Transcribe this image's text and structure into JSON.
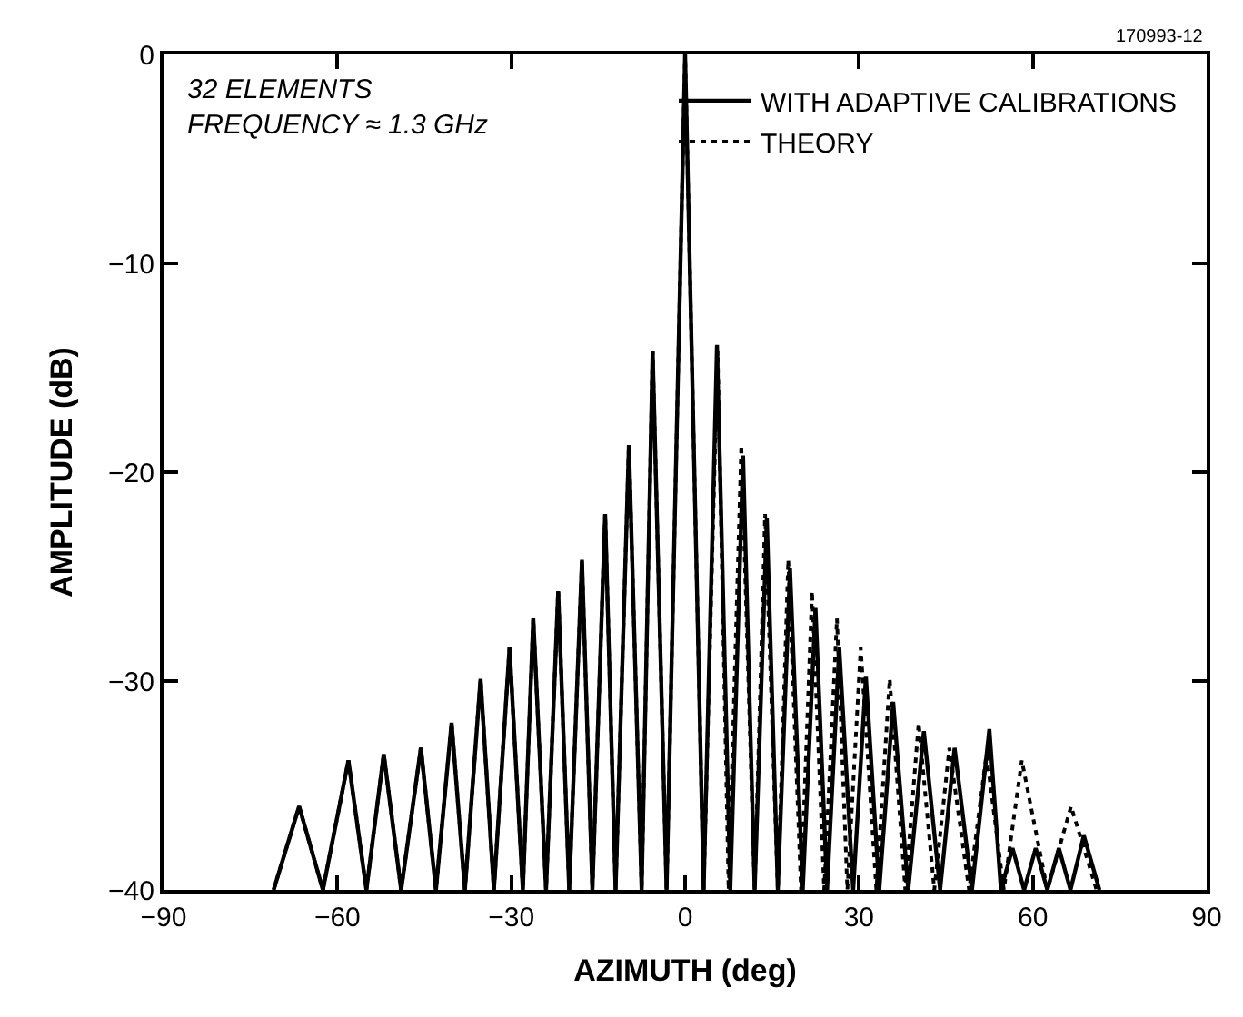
{
  "chart_data": {
    "type": "line",
    "xlabel": "AZIMUTH (deg)",
    "ylabel": "AMPLITUDE (dB)",
    "xlim": [
      -90,
      90
    ],
    "xticks": [
      -90,
      -60,
      -30,
      0,
      30,
      60,
      90
    ],
    "ylim": [
      -40,
      0
    ],
    "yticks": [
      -40,
      -30,
      -20,
      -10,
      0
    ],
    "legend": "top right",
    "marker": "none",
    "annotations": [
      "32 ELEMENTS\nFREQUENCY ≈ 1.3 GHz",
      "170993-12"
    ],
    "series": [
      {
        "name": "THEORY",
        "color": "#000000",
        "line_style": "dotted",
        "x": [
          -71,
          -66.6,
          -62.5,
          -58.1,
          -55,
          -52,
          -49,
          -45.6,
          -43,
          -40.3,
          -38,
          -35.3,
          -33,
          -30.3,
          -28,
          -26.2,
          -24,
          -21.9,
          -20,
          -17.8,
          -16,
          -13.8,
          -12,
          -9.7,
          -7.5,
          -5.6,
          -3.2,
          0,
          3.2,
          5.6,
          7.5,
          9.7,
          12,
          13.8,
          16,
          17.8,
          20,
          21.9,
          24,
          26.2,
          28,
          30.3,
          33,
          35.3,
          38,
          40.3,
          43,
          45.6,
          49,
          52,
          55,
          58.1,
          62.5,
          66.6,
          71
        ],
        "values": [
          -40,
          -36,
          -40,
          -33.8,
          -40,
          -33.5,
          -40,
          -33.2,
          -40,
          -32,
          -40,
          -29.9,
          -40,
          -28.4,
          -40,
          -27,
          -40,
          -25.7,
          -40,
          -24.2,
          -40,
          -22,
          -40,
          -18.7,
          -40,
          -14.2,
          -40,
          0,
          -40,
          -14.2,
          -40,
          -18.7,
          -40,
          -22,
          -40,
          -24.2,
          -40,
          -25.7,
          -40,
          -27,
          -40,
          -28.4,
          -40,
          -29.9,
          -40,
          -32,
          -40,
          -33.2,
          -40,
          -33.5,
          -40,
          -33.8,
          -40,
          -36,
          -40
        ]
      },
      {
        "name": "WITH ADAPTIVE CALIBRATIONS",
        "color": "#000000",
        "line_style": "solid",
        "x": [
          -71,
          -66.6,
          -62.5,
          -58.1,
          -55,
          -52,
          -49,
          -45.6,
          -43,
          -40.3,
          -38,
          -35.3,
          -33,
          -30.3,
          -28,
          -26.2,
          -24,
          -21.9,
          -20,
          -17.8,
          -16,
          -13.8,
          -12,
          -9.7,
          -7.5,
          -5.6,
          -3.2,
          0,
          3.2,
          5.5,
          7.8,
          10,
          12,
          14.1,
          16,
          18.1,
          20.3,
          22.5,
          24.5,
          26.6,
          29,
          31.2,
          33.5,
          35.9,
          38.5,
          41.2,
          44,
          46.5,
          49.5,
          52.5,
          54.5,
          56.5,
          58.5,
          60.5,
          62.5,
          64.5,
          66.5,
          68.8,
          71.5
        ],
        "values": [
          -40,
          -36,
          -40,
          -33.8,
          -40,
          -33.5,
          -40,
          -33.2,
          -40,
          -32,
          -40,
          -29.9,
          -40,
          -28.4,
          -40,
          -27,
          -40,
          -25.7,
          -40,
          -24.2,
          -40,
          -22,
          -40,
          -18.7,
          -40,
          -14.2,
          -40,
          0,
          -40,
          -13.9,
          -40,
          -19.2,
          -40,
          -22.2,
          -40,
          -24.6,
          -40,
          -26.5,
          -40,
          -28.4,
          -40,
          -29.8,
          -40,
          -31,
          -40,
          -32.4,
          -40,
          -33.2,
          -40,
          -32.3,
          -40,
          -38,
          -40,
          -38,
          -40,
          -38,
          -40,
          -37.4,
          -40
        ]
      }
    ]
  }
}
